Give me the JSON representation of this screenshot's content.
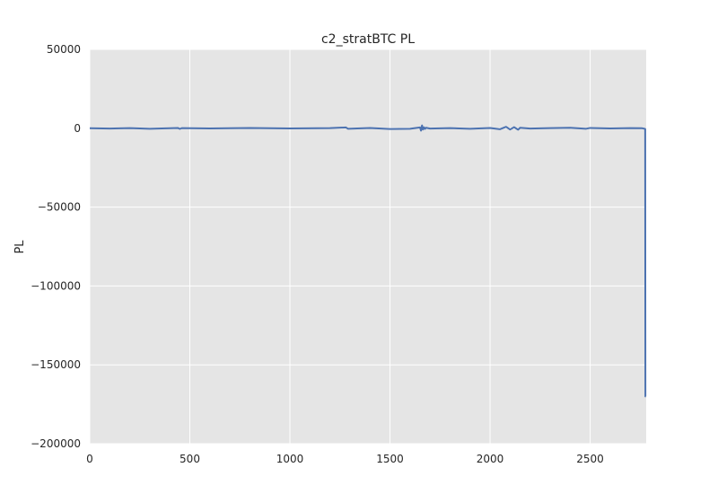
{
  "chart_data": {
    "type": "line",
    "title": "c2_stratBTC PL",
    "xlabel": "",
    "ylabel": "PL",
    "xlim": [
      0,
      2780
    ],
    "ylim": [
      -200000,
      50000
    ],
    "x_ticks": [
      "0",
      "500",
      "1000",
      "1500",
      "2000",
      "2500"
    ],
    "x_tick_values": [
      0,
      500,
      1000,
      1500,
      2000,
      2500
    ],
    "y_ticks": [
      "50000",
      "0",
      "−50000",
      "−100000",
      "−150000",
      "−200000"
    ],
    "y_tick_values": [
      50000,
      0,
      -50000,
      -100000,
      -150000,
      -200000
    ],
    "grid": true,
    "background_color": "#e5e5e5",
    "grid_color": "#ffffff",
    "line_color": "#4c72b0",
    "series": [
      {
        "name": "",
        "x": [
          0,
          100,
          200,
          300,
          440,
          450,
          460,
          600,
          800,
          1000,
          1200,
          1280,
          1290,
          1400,
          1500,
          1600,
          1650,
          1655,
          1660,
          1665,
          1670,
          1675,
          1680,
          1700,
          1800,
          1900,
          2000,
          2050,
          2080,
          2100,
          2120,
          2140,
          2150,
          2200,
          2300,
          2400,
          2480,
          2500,
          2600,
          2700,
          2760,
          2775,
          2776,
          2778
        ],
        "y": [
          0,
          -200,
          100,
          -300,
          200,
          -400,
          100,
          -100,
          200,
          -100,
          100,
          500,
          -300,
          200,
          -500,
          -300,
          500,
          -1500,
          1800,
          -800,
          600,
          -400,
          300,
          -200,
          100,
          -300,
          200,
          -600,
          900,
          -800,
          700,
          -900,
          300,
          -200,
          100,
          300,
          -300,
          200,
          -100,
          100,
          0,
          -400,
          -170000,
          -170000
        ]
      }
    ]
  }
}
